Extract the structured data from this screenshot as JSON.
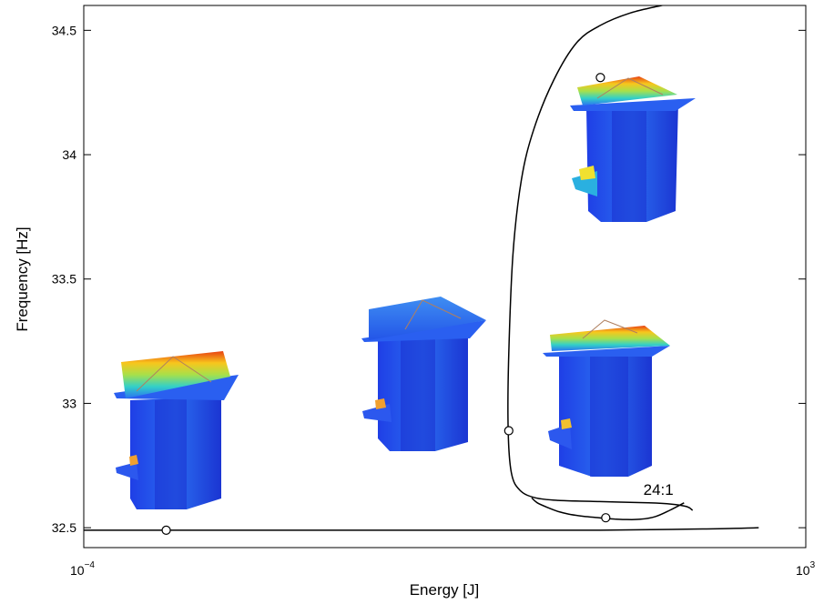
{
  "chart_data": {
    "type": "line",
    "title": "",
    "xlabel": "Energy [J]",
    "ylabel": "Frequency [Hz]",
    "xscale": "log",
    "xlim": [
      0.0001,
      1000
    ],
    "ylim": [
      32.42,
      34.6
    ],
    "grid": false,
    "x_ticks": [
      {
        "value": 0.0001,
        "base": "10",
        "exp": "−4"
      },
      {
        "value": 1000,
        "base": "10",
        "exp": "3"
      }
    ],
    "y_ticks": [
      {
        "value": 32.5,
        "label": "32.5"
      },
      {
        "value": 33,
        "label": "33"
      },
      {
        "value": 33.5,
        "label": "33.5"
      },
      {
        "value": 34,
        "label": "34"
      },
      {
        "value": 34.5,
        "label": "34.5"
      }
    ],
    "series": [
      {
        "style": "solid",
        "x": [
          0.0001,
          0.001,
          0.01,
          0.1,
          1,
          10,
          50,
          100,
          200,
          350
        ],
        "y": [
          32.49,
          32.49,
          32.49,
          32.49,
          32.49,
          32.49,
          32.493,
          32.495,
          32.497,
          32.5
        ]
      },
      {
        "style": "solid",
        "x": [
          2.2,
          2.5,
          3.2,
          4.0,
          5.0,
          7.0,
          10.0,
          11.5,
          14.0,
          18.0,
          25.0,
          35.0,
          48.0,
          66.0
        ],
        "y": [
          32.62,
          32.6,
          32.58,
          32.565,
          32.555,
          32.546,
          32.54,
          32.537,
          32.535,
          32.533,
          32.534,
          32.545,
          32.57,
          32.6
        ]
      },
      {
        "style": "solid",
        "x": [
          80.0,
          70.0,
          50.0,
          30.0,
          10.0,
          4.0,
          2.4,
          1.7,
          1.4,
          1.3,
          1.32,
          1.45,
          1.75,
          2.3,
          3.6,
          6.0,
          10.2,
          20.0,
          40.0,
          70.0
        ],
        "y": [
          32.57,
          32.585,
          32.595,
          32.6,
          32.605,
          32.61,
          32.62,
          32.65,
          32.72,
          32.9,
          33.2,
          33.6,
          33.9,
          34.1,
          34.3,
          34.45,
          34.52,
          34.57,
          34.6,
          34.62
        ]
      }
    ],
    "markers": [
      {
        "x": 0.00063,
        "y": 32.49
      },
      {
        "x": 1.32,
        "y": 32.89
      },
      {
        "x": 11.5,
        "y": 32.54
      },
      {
        "x": 10.2,
        "y": 34.31
      }
    ],
    "annotations": [
      {
        "text": "24:1",
        "x": 40,
        "y": 32.61
      }
    ]
  }
}
